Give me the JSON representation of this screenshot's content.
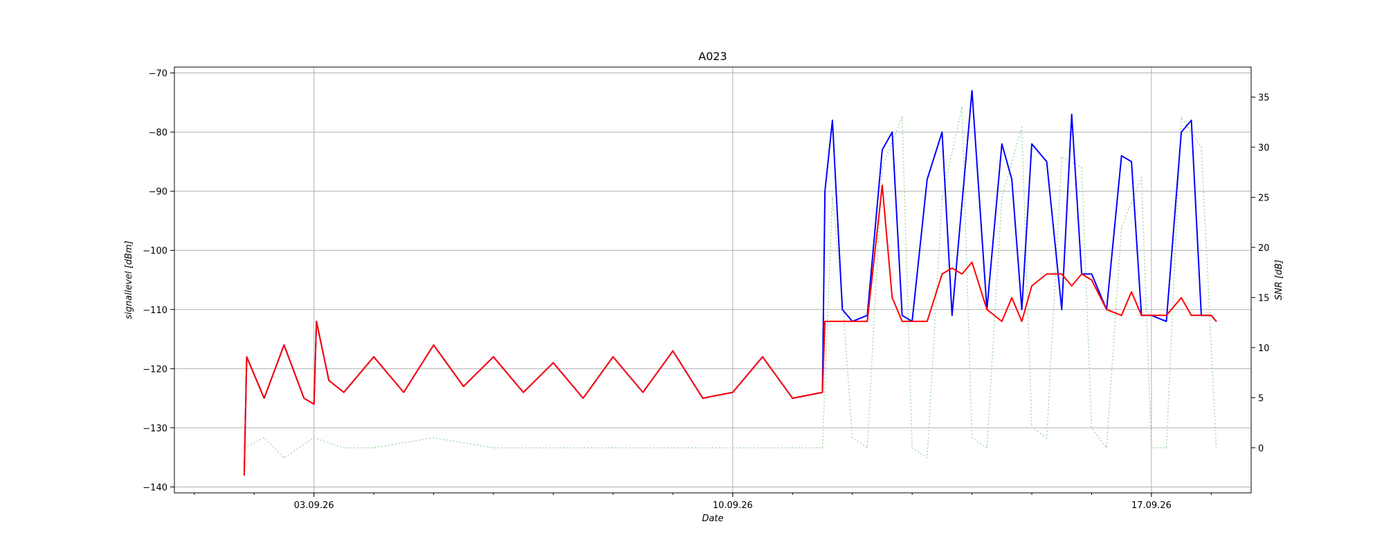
{
  "chart_data": {
    "type": "line",
    "title": "A023",
    "xlabel": "Date",
    "ylabel": "signallevel [dBm]",
    "ylabel_right": "SNR [dB]",
    "xlim": [
      "2026-08-31T16:00",
      "2026-09-18T16:00"
    ],
    "x_ticks": [
      "03.09.26",
      "10.09.26",
      "17.09.26"
    ],
    "ylim": [
      -141,
      -69
    ],
    "ylim_right": [
      -4.5,
      38
    ],
    "y_ticks": [
      -140,
      -130,
      -120,
      -110,
      -100,
      -90,
      -80,
      -70
    ],
    "y_ticks_right": [
      0,
      5,
      10,
      15,
      20,
      25,
      30,
      35
    ],
    "grid": true,
    "colors": {
      "series_a": "#0000ff",
      "series_b": "#ff0000",
      "snr": "#a8d8a8"
    },
    "series": [
      {
        "axis": "left",
        "style": "solid",
        "color": "#0000ff",
        "x": [
          "2026-09-01T20:00",
          "2026-09-01T21:00",
          "2026-09-02T04:00",
          "2026-09-02T12:00",
          "2026-09-02T20:00",
          "2026-09-03T00:00",
          "2026-09-03T01:00",
          "2026-09-03T06:00",
          "2026-09-03T12:00",
          "2026-09-04T00:00",
          "2026-09-04T12:00",
          "2026-09-05T00:00",
          "2026-09-05T12:00",
          "2026-09-06T00:00",
          "2026-09-06T12:00",
          "2026-09-07T00:00",
          "2026-09-07T12:00",
          "2026-09-08T00:00",
          "2026-09-08T12:00",
          "2026-09-09T00:00",
          "2026-09-09T12:00",
          "2026-09-10T00:00",
          "2026-09-10T12:00",
          "2026-09-11T00:00",
          "2026-09-11T12:00",
          "2026-09-11T13:00",
          "2026-09-11T16:00",
          "2026-09-11T20:00",
          "2026-09-12T00:00",
          "2026-09-12T06:00",
          "2026-09-12T12:00",
          "2026-09-12T16:00",
          "2026-09-12T20:00",
          "2026-09-13T00:00",
          "2026-09-13T06:00",
          "2026-09-13T12:00",
          "2026-09-13T16:00",
          "2026-09-13T20:00",
          "2026-09-14T00:00",
          "2026-09-14T06:00",
          "2026-09-14T12:00",
          "2026-09-14T16:00",
          "2026-09-14T20:00",
          "2026-09-15T00:00",
          "2026-09-15T06:00",
          "2026-09-15T12:00",
          "2026-09-15T16:00",
          "2026-09-15T20:00",
          "2026-09-16T00:00",
          "2026-09-16T06:00",
          "2026-09-16T12:00",
          "2026-09-16T16:00",
          "2026-09-16T20:00",
          "2026-09-17T00:00",
          "2026-09-17T06:00",
          "2026-09-17T12:00",
          "2026-09-17T16:00",
          "2026-09-17T20:00",
          "2026-09-18T00:00",
          "2026-09-18T02:00"
        ],
        "y": [
          -138,
          -118,
          -125,
          -116,
          -125,
          -126,
          -112,
          -122,
          -124,
          -118,
          -124,
          -116,
          -123,
          -118,
          -124,
          -119,
          -125,
          -118,
          -124,
          -117,
          -125,
          -124,
          -118,
          -125,
          -124,
          -90,
          -78,
          -110,
          -112,
          -111,
          -83,
          -80,
          -111,
          -112,
          -88,
          -80,
          -111,
          -92,
          -73,
          -110,
          -82,
          -88,
          -110,
          -82,
          -85,
          -110,
          -77,
          -104,
          -104,
          -110,
          -84,
          -85,
          -111,
          -111,
          -112,
          -80,
          -78,
          -111,
          -111,
          -112
        ]
      },
      {
        "axis": "left",
        "style": "solid",
        "color": "#ff0000",
        "x": [
          "2026-09-01T20:00",
          "2026-09-01T21:00",
          "2026-09-02T04:00",
          "2026-09-02T12:00",
          "2026-09-02T20:00",
          "2026-09-03T00:00",
          "2026-09-03T01:00",
          "2026-09-03T06:00",
          "2026-09-03T12:00",
          "2026-09-04T00:00",
          "2026-09-04T12:00",
          "2026-09-05T00:00",
          "2026-09-05T12:00",
          "2026-09-06T00:00",
          "2026-09-06T12:00",
          "2026-09-07T00:00",
          "2026-09-07T12:00",
          "2026-09-08T00:00",
          "2026-09-08T12:00",
          "2026-09-09T00:00",
          "2026-09-09T12:00",
          "2026-09-10T00:00",
          "2026-09-10T12:00",
          "2026-09-11T00:00",
          "2026-09-11T12:00",
          "2026-09-11T13:00",
          "2026-09-11T16:00",
          "2026-09-11T20:00",
          "2026-09-12T00:00",
          "2026-09-12T06:00",
          "2026-09-12T12:00",
          "2026-09-12T16:00",
          "2026-09-12T20:00",
          "2026-09-13T00:00",
          "2026-09-13T06:00",
          "2026-09-13T12:00",
          "2026-09-13T16:00",
          "2026-09-13T20:00",
          "2026-09-14T00:00",
          "2026-09-14T06:00",
          "2026-09-14T12:00",
          "2026-09-14T16:00",
          "2026-09-14T20:00",
          "2026-09-15T00:00",
          "2026-09-15T06:00",
          "2026-09-15T12:00",
          "2026-09-15T16:00",
          "2026-09-15T20:00",
          "2026-09-16T00:00",
          "2026-09-16T06:00",
          "2026-09-16T12:00",
          "2026-09-16T16:00",
          "2026-09-16T20:00",
          "2026-09-17T00:00",
          "2026-09-17T06:00",
          "2026-09-17T12:00",
          "2026-09-17T16:00",
          "2026-09-17T20:00",
          "2026-09-18T00:00",
          "2026-09-18T02:00"
        ],
        "y": [
          -138,
          -118,
          -125,
          -116,
          -125,
          -126,
          -112,
          -122,
          -124,
          -118,
          -124,
          -116,
          -123,
          -118,
          -124,
          -119,
          -125,
          -118,
          -124,
          -117,
          -125,
          -124,
          -118,
          -125,
          -124,
          -112,
          -112,
          -112,
          -112,
          -112,
          -89,
          -108,
          -112,
          -112,
          -112,
          -104,
          -103,
          -104,
          -102,
          -110,
          -112,
          -108,
          -112,
          -106,
          -104,
          -104,
          -106,
          -104,
          -105,
          -110,
          -111,
          -107,
          -111,
          -111,
          -111,
          -108,
          -111,
          -111,
          -111,
          -112
        ]
      },
      {
        "axis": "right",
        "style": "dotted",
        "color": "#a8d8a8",
        "x": [
          "2026-09-01T20:00",
          "2026-09-02T04:00",
          "2026-09-02T12:00",
          "2026-09-03T00:00",
          "2026-09-03T12:00",
          "2026-09-04T00:00",
          "2026-09-05T00:00",
          "2026-09-06T00:00",
          "2026-09-07T00:00",
          "2026-09-08T00:00",
          "2026-09-09T00:00",
          "2026-09-10T00:00",
          "2026-09-11T00:00",
          "2026-09-11T12:00",
          "2026-09-11T16:00",
          "2026-09-11T20:00",
          "2026-09-12T00:00",
          "2026-09-12T06:00",
          "2026-09-12T12:00",
          "2026-09-12T20:00",
          "2026-09-13T00:00",
          "2026-09-13T06:00",
          "2026-09-13T12:00",
          "2026-09-13T20:00",
          "2026-09-14T00:00",
          "2026-09-14T06:00",
          "2026-09-14T12:00",
          "2026-09-14T20:00",
          "2026-09-15T00:00",
          "2026-09-15T06:00",
          "2026-09-15T12:00",
          "2026-09-15T20:00",
          "2026-09-16T00:00",
          "2026-09-16T06:00",
          "2026-09-16T12:00",
          "2026-09-16T20:00",
          "2026-09-17T00:00",
          "2026-09-17T06:00",
          "2026-09-17T12:00",
          "2026-09-17T20:00",
          "2026-09-18T02:00"
        ],
        "y": [
          0,
          1,
          -1,
          1,
          0,
          0,
          1,
          0,
          0,
          0,
          0,
          0,
          0,
          0,
          25,
          15,
          1,
          0,
          28,
          33,
          0,
          -1,
          25,
          34,
          1,
          0,
          25,
          32,
          2,
          1,
          29,
          28,
          2,
          0,
          22,
          27,
          0,
          0,
          33,
          30,
          0
        ]
      }
    ]
  }
}
